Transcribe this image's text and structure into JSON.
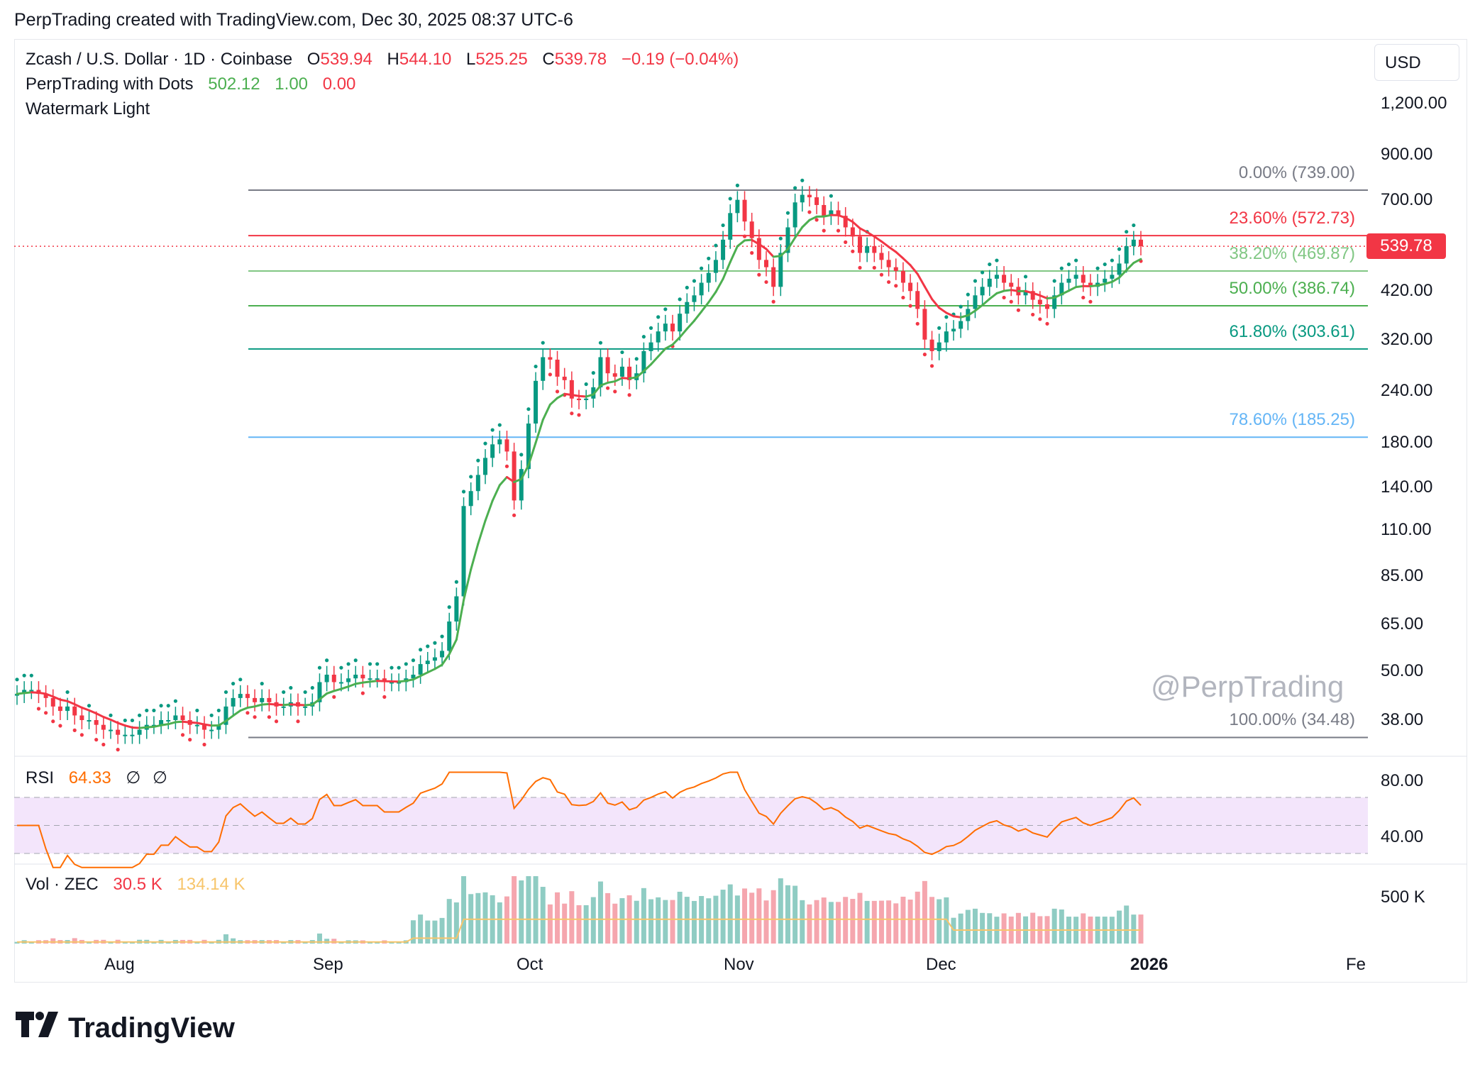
{
  "header": {
    "credit": "PerpTrading created with TradingView.com, Dec 30, 2025 08:37 UTC-6"
  },
  "legend": {
    "symbol": "Zcash / U.S. Dollar · 1D · Coinbase",
    "o_label": "O",
    "o_val": "539.94",
    "h_label": "H",
    "h_val": "544.10",
    "l_label": "L",
    "l_val": "525.25",
    "c_label": "C",
    "c_val": "539.78",
    "change": "−0.19 (−0.04%)",
    "indicator_name": "PerpTrading with Dots",
    "ind_v1": "502.12",
    "ind_v2": "1.00",
    "ind_v3": "0.00",
    "watermark_name": "Watermark Light"
  },
  "currency": "USD",
  "last_price": "539.78",
  "price_axis": [
    "1,200.00",
    "900.00",
    "700.00",
    "420.00",
    "320.00",
    "240.00",
    "180.00",
    "140.00",
    "110.00",
    "85.00",
    "65.00",
    "50.00",
    "38.00"
  ],
  "fib_levels": [
    {
      "label": "0.00% (739.00)",
      "color": "#787b86"
    },
    {
      "label": "23.60% (572.73)",
      "color": "#f23645"
    },
    {
      "label": "38.20% (469.87)",
      "color": "#81c784"
    },
    {
      "label": "50.00% (386.74)",
      "color": "#4caf50"
    },
    {
      "label": "61.80% (303.61)",
      "color": "#089981"
    },
    {
      "label": "78.60% (185.25)",
      "color": "#64b5f6"
    },
    {
      "label": "100.00% (34.48)",
      "color": "#787b86"
    }
  ],
  "watermark": "@PerpTrading",
  "rsi": {
    "label": "RSI",
    "value": "64.33",
    "s1": "∅",
    "s2": "∅",
    "axis": [
      "80.00",
      "40.00"
    ]
  },
  "volume": {
    "label": "Vol · ZEC",
    "value": "30.5 K",
    "ma": "134.14 K",
    "axis": "500 K"
  },
  "time_axis": [
    "Aug",
    "Sep",
    "Oct",
    "Nov",
    "Dec",
    "2026",
    "Fe"
  ],
  "brand": "TradingView",
  "colors": {
    "up": "#089981",
    "down": "#f23645",
    "ma_up": "#4caf50",
    "ma_down": "#f23645",
    "rsi": "#ff6d00",
    "rsi_band": "#f3e5fb",
    "vol_up": "#8fccc3",
    "vol_down": "#f5a6ae",
    "vol_ma": "#f7c56b"
  },
  "chart_data": {
    "type": "candlestick",
    "title": "Zcash / U.S. Dollar · 1D · Coinbase",
    "scale": "log",
    "ylim": [
      30,
      1400
    ],
    "x_range": [
      "Jul 22, 2025",
      "Feb 2026"
    ],
    "closes_approx": [
      44,
      45,
      45,
      44,
      43,
      41,
      40,
      41,
      39,
      38,
      38,
      37,
      36,
      36,
      35,
      35,
      35,
      36,
      37,
      37,
      38,
      38,
      39,
      38,
      37,
      37,
      36,
      36,
      37,
      41,
      43,
      44,
      43,
      42,
      43,
      42,
      41,
      41,
      42,
      41,
      41,
      42,
      47,
      49,
      47,
      47,
      48,
      49,
      48,
      48,
      48,
      47,
      47,
      47,
      48,
      49,
      52,
      53,
      54,
      56,
      66,
      76,
      126,
      137,
      150,
      165,
      178,
      183,
      171,
      130,
      155,
      200,
      254,
      290,
      286,
      260,
      255,
      230,
      228,
      230,
      245,
      290,
      265,
      260,
      275,
      255,
      265,
      300,
      315,
      335,
      350,
      335,
      370,
      395,
      410,
      440,
      465,
      500,
      560,
      650,
      700,
      620,
      565,
      500,
      480,
      430,
      520,
      600,
      690,
      720,
      710,
      680,
      640,
      660,
      640,
      600,
      570,
      520,
      540,
      520,
      500,
      480,
      470,
      440,
      420,
      380,
      320,
      300,
      315,
      335,
      340,
      355,
      380,
      410,
      430,
      450,
      460,
      440,
      430,
      410,
      420,
      400,
      390,
      380,
      410,
      440,
      450,
      460,
      440,
      430,
      440,
      450,
      460,
      490,
      540,
      560,
      539.78
    ],
    "fibonacci": {
      "0.000": 739.0,
      "0.236": 572.73,
      "0.382": 469.87,
      "0.500": 386.74,
      "0.618": 303.61,
      "0.786": 185.25,
      "1.000": 34.48
    },
    "rsi_last": 64.33,
    "volume_last": "30.5K",
    "volume_ma": "134.14K"
  }
}
